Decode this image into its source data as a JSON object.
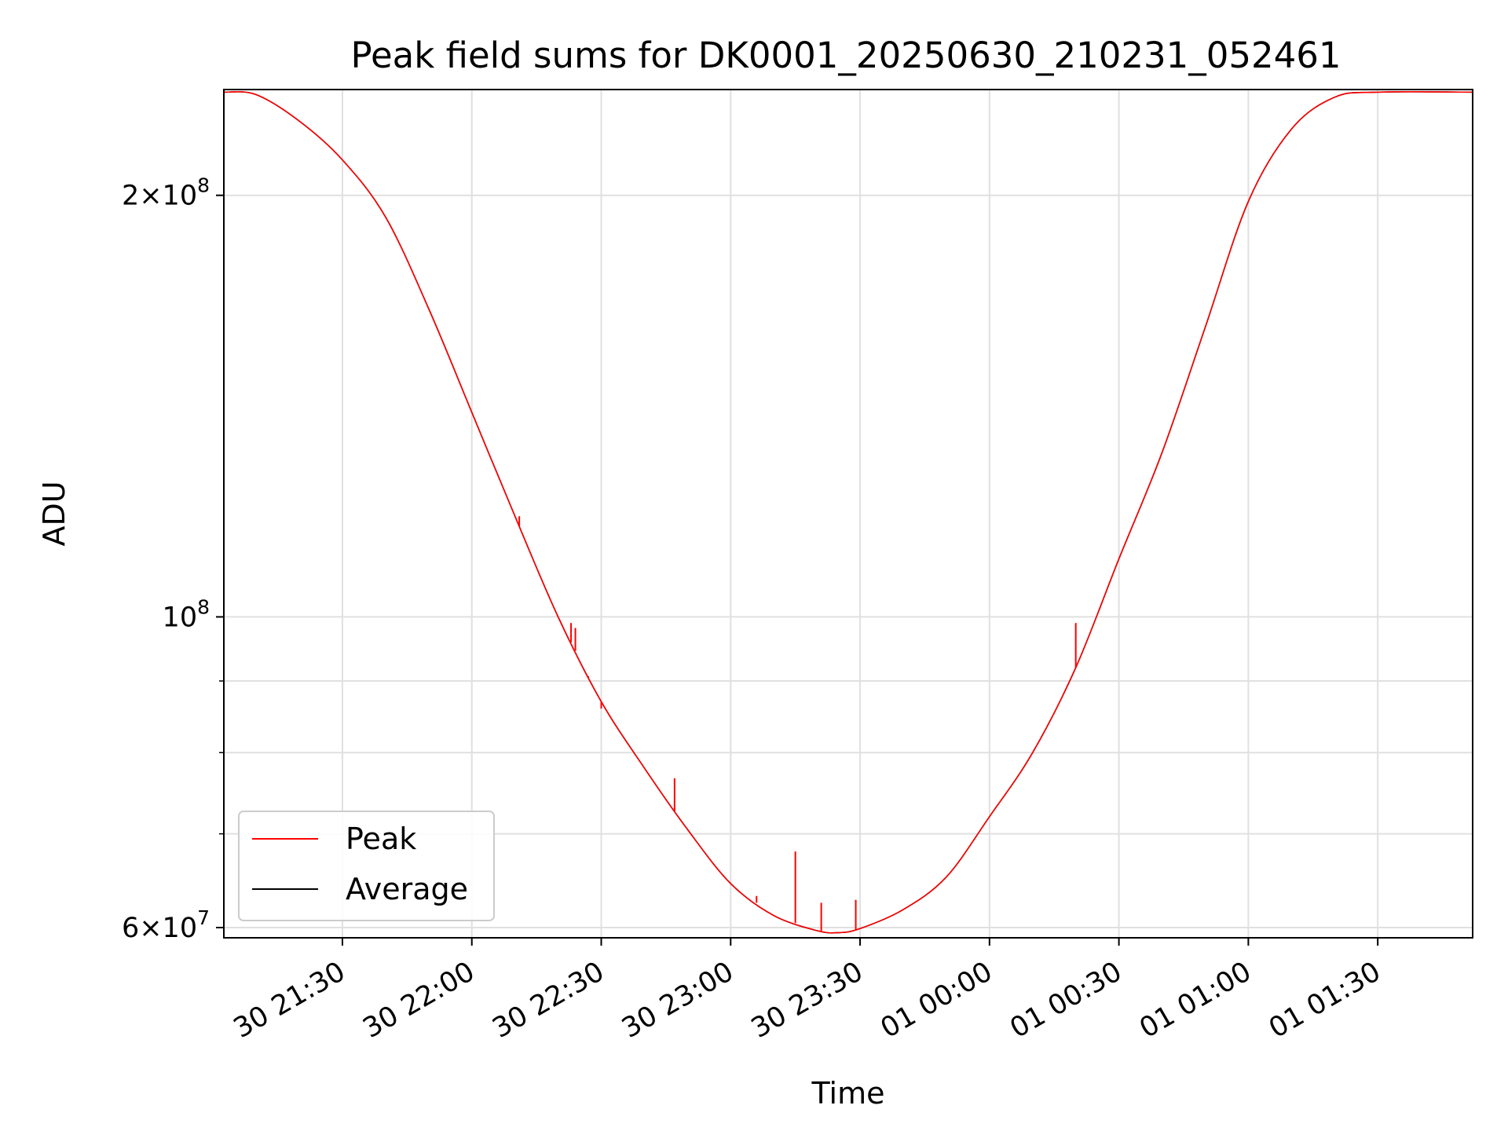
{
  "chart_data": {
    "type": "line",
    "title": "Peak field sums for DK0001_20250630_210231_052461",
    "xlabel": "Time",
    "ylabel": "ADU",
    "yscale": "log",
    "xlim": [
      "2025-06-30 21:02:31",
      "2025-07-01 01:52:00"
    ],
    "ylim": [
      59000000,
      238000000
    ],
    "grid": true,
    "legend_position": "lower-left",
    "x_ticks": [
      {
        "x": "2025-06-30 21:30",
        "label": "30 21:30"
      },
      {
        "x": "2025-06-30 22:00",
        "label": "30 22:00"
      },
      {
        "x": "2025-06-30 22:30",
        "label": "30 22:30"
      },
      {
        "x": "2025-06-30 23:00",
        "label": "30 23:00"
      },
      {
        "x": "2025-06-30 23:30",
        "label": "30 23:30"
      },
      {
        "x": "2025-07-01 00:00",
        "label": "01 00:00"
      },
      {
        "x": "2025-07-01 00:30",
        "label": "01 00:30"
      },
      {
        "x": "2025-07-01 01:00",
        "label": "01 01:00"
      },
      {
        "x": "2025-07-01 01:30",
        "label": "01 01:30"
      }
    ],
    "y_major_ticks": [
      {
        "y": 60000000,
        "base": "6×10",
        "exp": "7"
      },
      {
        "y": 100000000,
        "base": "10",
        "exp": "8"
      },
      {
        "y": 200000000,
        "base": "2×10",
        "exp": "8"
      }
    ],
    "y_minor_ticks": [
      70000000,
      80000000,
      90000000
    ],
    "series": [
      {
        "name": "Average",
        "color": "#000000",
        "points": [
          [
            "2025-06-30 21:02:31",
            237000000
          ],
          [
            "2025-06-30 21:10",
            236000000
          ],
          [
            "2025-06-30 21:20",
            226000000
          ],
          [
            "2025-06-30 21:30",
            212000000
          ],
          [
            "2025-06-30 21:40",
            193000000
          ],
          [
            "2025-06-30 21:50",
            166000000
          ],
          [
            "2025-06-30 22:00",
            140000000
          ],
          [
            "2025-06-30 22:10",
            118000000
          ],
          [
            "2025-06-30 22:20",
            100000000
          ],
          [
            "2025-06-30 22:30",
            87000000
          ],
          [
            "2025-06-30 22:40",
            78000000
          ],
          [
            "2025-06-30 22:50",
            70500000
          ],
          [
            "2025-06-30 23:00",
            64500000
          ],
          [
            "2025-06-30 23:10",
            61200000
          ],
          [
            "2025-06-30 23:20",
            59700000
          ],
          [
            "2025-06-30 23:25",
            59500000
          ],
          [
            "2025-06-30 23:30",
            59900000
          ],
          [
            "2025-06-30 23:40",
            61800000
          ],
          [
            "2025-06-30 23:50",
            65200000
          ],
          [
            "2025-07-01 00:00",
            72000000
          ],
          [
            "2025-07-01 00:10",
            80000000
          ],
          [
            "2025-07-01 00:20",
            92000000
          ],
          [
            "2025-07-01 00:30",
            110000000
          ],
          [
            "2025-07-01 00:40",
            131000000
          ],
          [
            "2025-07-01 00:50",
            161000000
          ],
          [
            "2025-07-01 01:00",
            198000000
          ],
          [
            "2025-07-01 01:10",
            223000000
          ],
          [
            "2025-07-01 01:20",
            235000000
          ],
          [
            "2025-07-01 01:30",
            237000000
          ],
          [
            "2025-07-01 01:52",
            237000000
          ]
        ]
      },
      {
        "name": "Peak",
        "color": "#ff0000",
        "points": [
          [
            "2025-06-30 21:02:31",
            237000000
          ],
          [
            "2025-06-30 21:10",
            236000000
          ],
          [
            "2025-06-30 21:20",
            226000000
          ],
          [
            "2025-06-30 21:30",
            212000000
          ],
          [
            "2025-06-30 21:40",
            193000000
          ],
          [
            "2025-06-30 21:50",
            166000000
          ],
          [
            "2025-06-30 22:00",
            140000000
          ],
          [
            "2025-06-30 22:10",
            118000000
          ],
          [
            "2025-06-30 22:20",
            100000000
          ],
          [
            "2025-06-30 22:30",
            87000000
          ],
          [
            "2025-06-30 22:40",
            78000000
          ],
          [
            "2025-06-30 22:50",
            70500000
          ],
          [
            "2025-06-30 23:00",
            64500000
          ],
          [
            "2025-06-30 23:10",
            61200000
          ],
          [
            "2025-06-30 23:20",
            59700000
          ],
          [
            "2025-06-30 23:25",
            59500000
          ],
          [
            "2025-06-30 23:30",
            59900000
          ],
          [
            "2025-06-30 23:40",
            61800000
          ],
          [
            "2025-06-30 23:50",
            65200000
          ],
          [
            "2025-07-01 00:00",
            72000000
          ],
          [
            "2025-07-01 00:10",
            80000000
          ],
          [
            "2025-07-01 00:20",
            92000000
          ],
          [
            "2025-07-01 00:30",
            110000000
          ],
          [
            "2025-07-01 00:40",
            131000000
          ],
          [
            "2025-07-01 00:50",
            161000000
          ],
          [
            "2025-07-01 01:00",
            198000000
          ],
          [
            "2025-07-01 01:10",
            223000000
          ],
          [
            "2025-07-01 01:20",
            235000000
          ],
          [
            "2025-07-01 01:30",
            237000000
          ],
          [
            "2025-07-01 01:52",
            237000000
          ]
        ],
        "spikes": [
          [
            "2025-06-30 22:11",
            118000000
          ],
          [
            "2025-06-30 22:23",
            99000000
          ],
          [
            "2025-06-30 22:24",
            98200000
          ],
          [
            "2025-06-30 22:27",
            90500000
          ],
          [
            "2025-06-30 22:30",
            86000000
          ],
          [
            "2025-06-30 22:47",
            76700000
          ],
          [
            "2025-06-30 23:06",
            63200000
          ],
          [
            "2025-06-30 23:15",
            68000000
          ],
          [
            "2025-06-30 23:21",
            62500000
          ],
          [
            "2025-06-30 23:29",
            62800000
          ],
          [
            "2025-07-01 00:20",
            99000000
          ]
        ]
      }
    ]
  }
}
